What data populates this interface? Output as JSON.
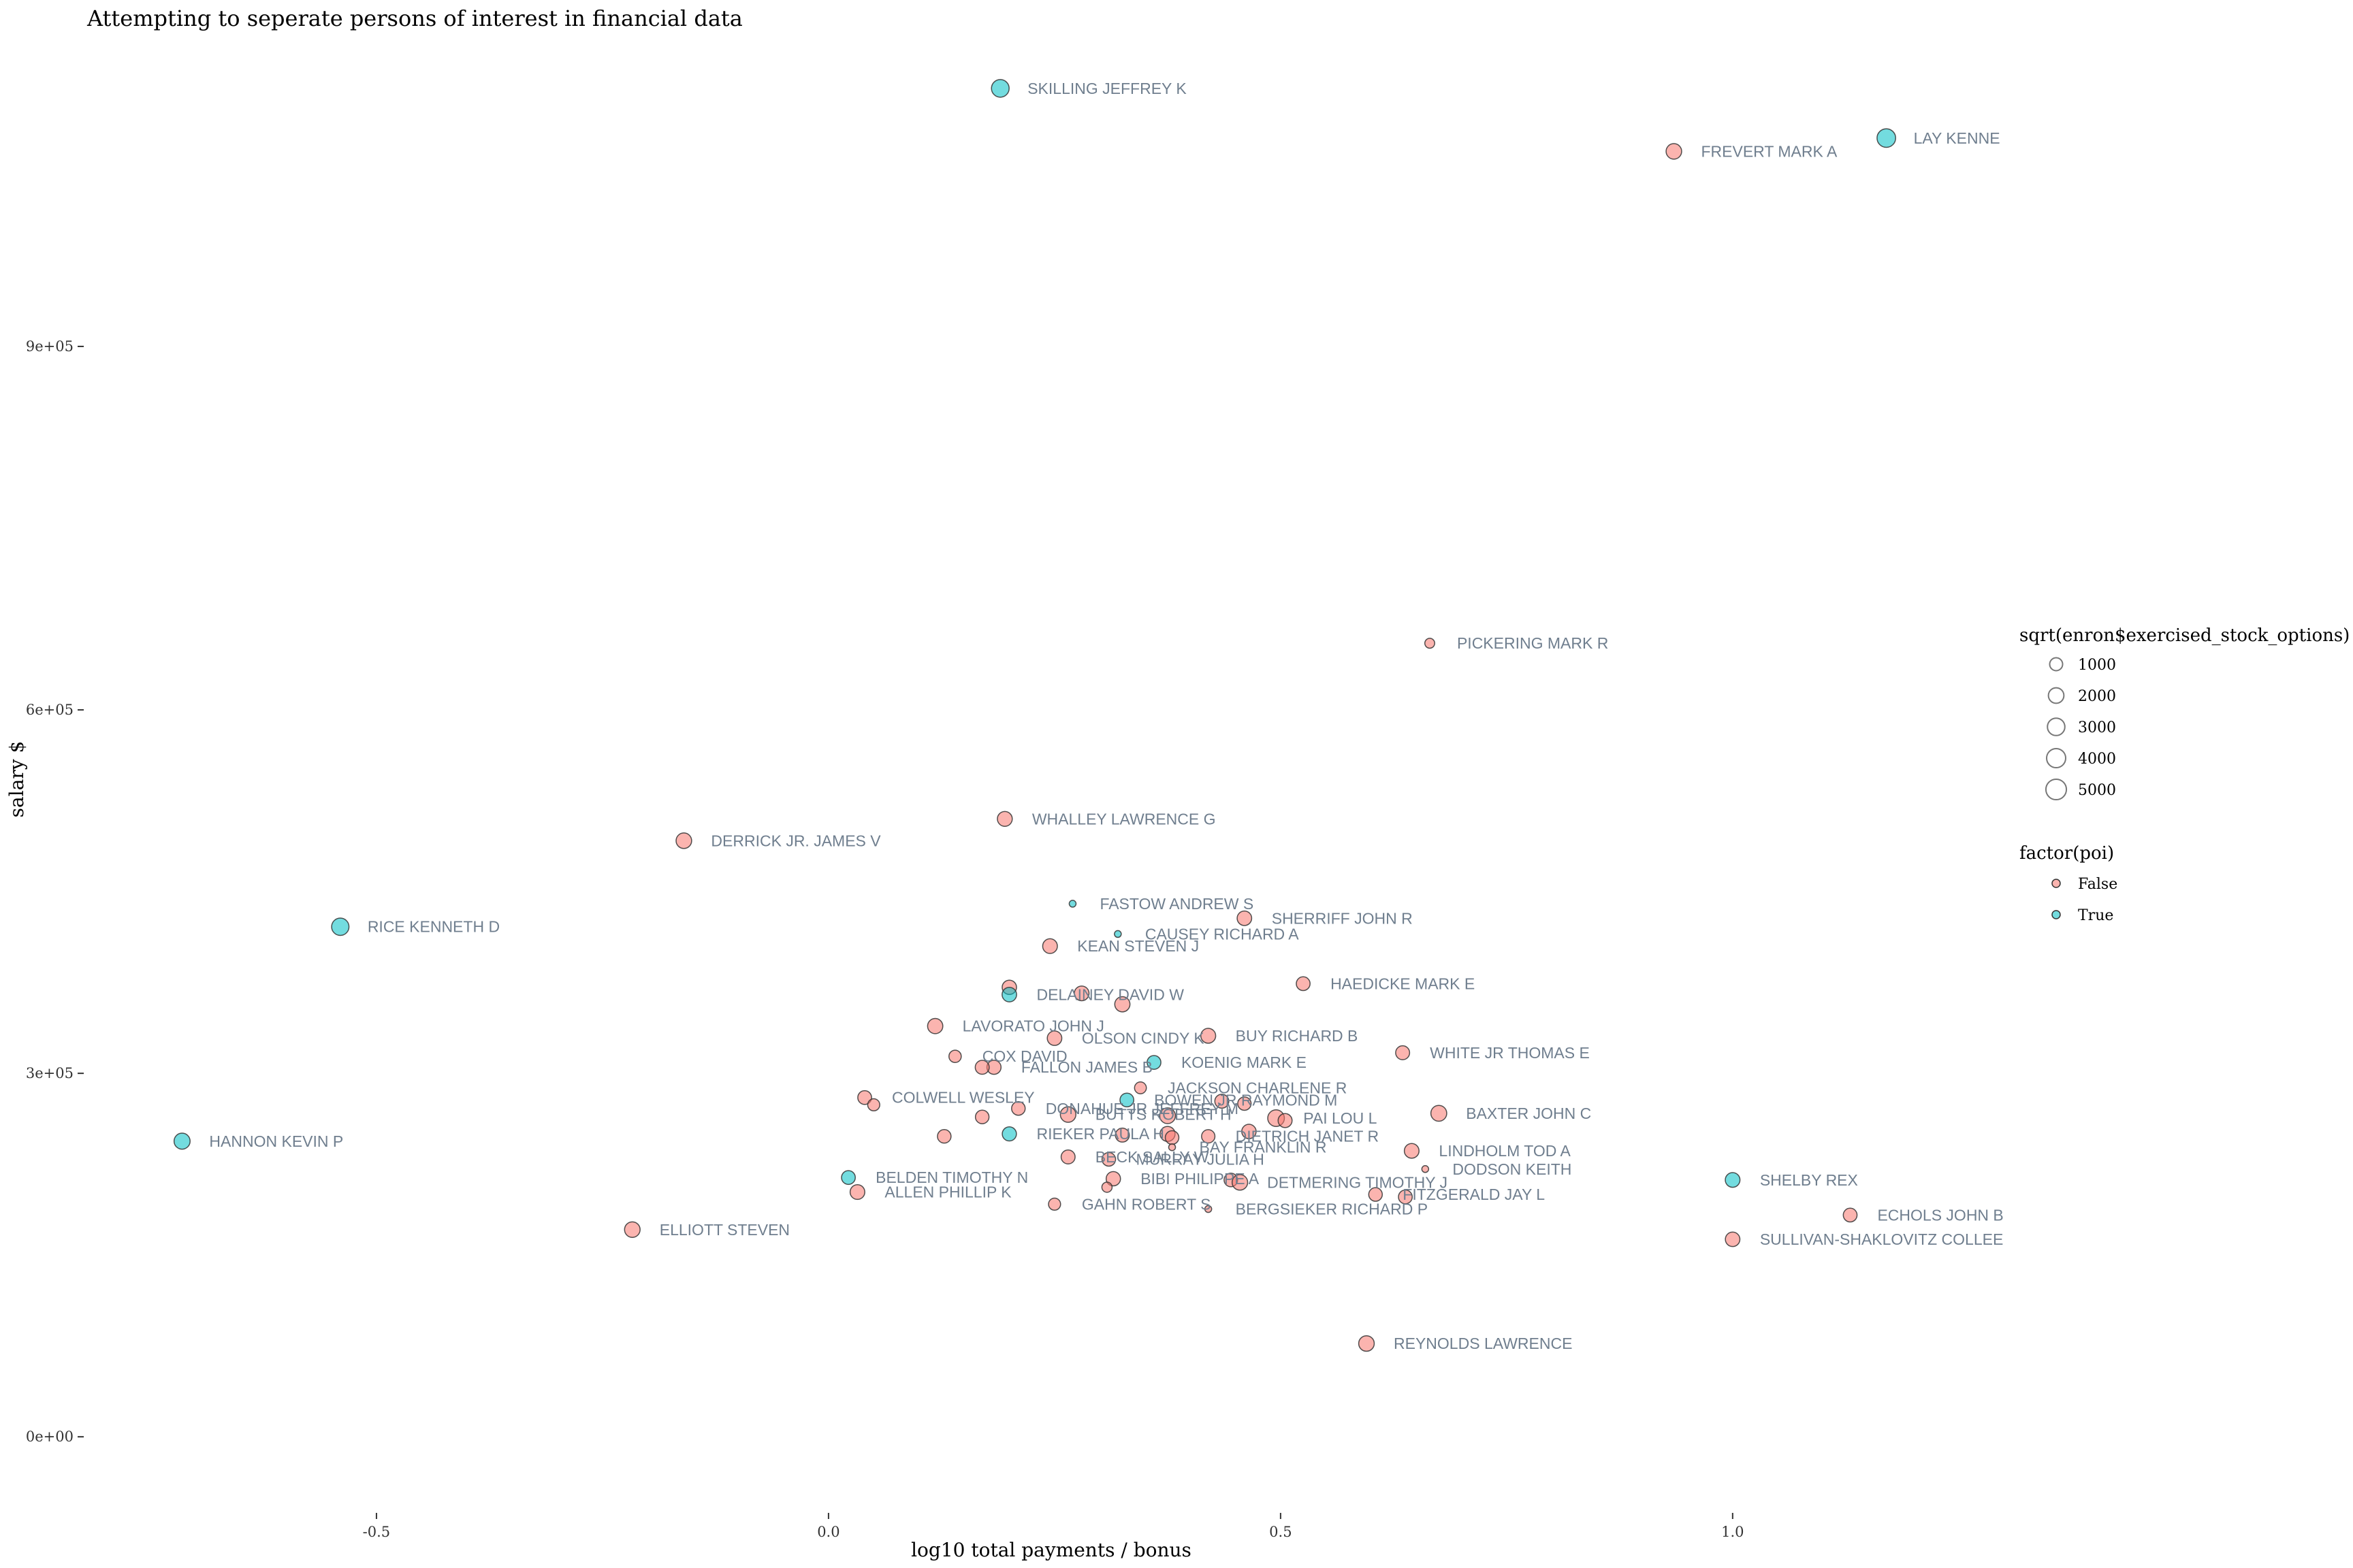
{
  "chart_data": {
    "type": "scatter",
    "title": "Attempting to seperate persons of interest in financial data",
    "xlabel": "log10 total payments / bonus",
    "ylabel": "salary $",
    "xlim": [
      -0.82,
      1.4
    ],
    "ylim": [
      -60000,
      1150000
    ],
    "x_ticks": [
      {
        "value": -0.5,
        "label": "-0.5"
      },
      {
        "value": 0.0,
        "label": "0.0"
      },
      {
        "value": 0.5,
        "label": "0.5"
      },
      {
        "value": 1.0,
        "label": "1.0"
      }
    ],
    "y_ticks": [
      {
        "value": 0,
        "label": "0e+00"
      },
      {
        "value": 300000,
        "label": "3e+05"
      },
      {
        "value": 600000,
        "label": "6e+05"
      },
      {
        "value": 900000,
        "label": "9e+05"
      }
    ],
    "grid": false,
    "size_legend": {
      "title": "sqrt(enron$exercised_stock_options)",
      "entries": [
        {
          "label": "1000",
          "value": 1000
        },
        {
          "label": "2000",
          "value": 2000
        },
        {
          "label": "3000",
          "value": 3000
        },
        {
          "label": "4000",
          "value": 4000
        },
        {
          "label": "5000",
          "value": 5000
        }
      ]
    },
    "color_legend": {
      "title": "factor(poi)",
      "entries": [
        {
          "label": "False",
          "color": "#F8766D"
        },
        {
          "label": "True",
          "color": "#00BFC4"
        }
      ]
    },
    "legend_placement": "right",
    "points": [
      {
        "label": "SKILLING JEFFREY K",
        "x": 0.19,
        "y": 1113000,
        "size": 4900,
        "poi": true
      },
      {
        "label": "LAY KENNE",
        "x": 1.17,
        "y": 1072000,
        "size": 5600,
        "poi": true
      },
      {
        "label": "FREVERT MARK A",
        "x": 0.935,
        "y": 1061000,
        "size": 3500,
        "poi": false
      },
      {
        "label": "PICKERING MARK R",
        "x": 0.665,
        "y": 655000,
        "size": 900,
        "poi": false
      },
      {
        "label": "WHALLEY LAWRENCE G",
        "x": 0.195,
        "y": 510000,
        "size": 3100,
        "poi": false
      },
      {
        "label": "DERRICK JR. JAMES V",
        "x": -0.16,
        "y": 492000,
        "size": 3500,
        "poi": false
      },
      {
        "label": "FASTOW ANDREW S",
        "x": 0.27,
        "y": 440000,
        "size": 200,
        "poi": true
      },
      {
        "label": "SHERRIFF JOHN R",
        "x": 0.46,
        "y": 428000,
        "size": 2900,
        "poi": false
      },
      {
        "label": "RICE KENNETH D",
        "x": -0.54,
        "y": 421000,
        "size": 4700,
        "poi": true
      },
      {
        "label": "CAUSEY RICHARD A",
        "x": 0.32,
        "y": 415000,
        "size": 200,
        "poi": true
      },
      {
        "label": "KEAN STEVEN J",
        "x": 0.245,
        "y": 405000,
        "size": 3000,
        "poi": false
      },
      {
        "label": "HAEDICKE MARK E",
        "x": 0.525,
        "y": 374000,
        "size": 2500,
        "poi": false
      },
      {
        "label": "",
        "x": 0.2,
        "y": 371000,
        "size": 2800,
        "poi": false
      },
      {
        "label": "DELAINEY DAVID W",
        "x": 0.2,
        "y": 365000,
        "size": 2900,
        "poi": true
      },
      {
        "label": "",
        "x": 0.28,
        "y": 366000,
        "size": 3000,
        "poi": false
      },
      {
        "label": "",
        "x": 0.325,
        "y": 357000,
        "size": 3300,
        "poi": false
      },
      {
        "label": "LAVORATO JOHN J",
        "x": 0.118,
        "y": 339000,
        "size": 3300,
        "poi": false
      },
      {
        "label": "BUY RICHARD B",
        "x": 0.42,
        "y": 331000,
        "size": 3100,
        "poi": false
      },
      {
        "label": "OLSON CINDY K",
        "x": 0.25,
        "y": 329000,
        "size": 2900,
        "poi": false
      },
      {
        "label": "WHITE JR THOMAS E",
        "x": 0.635,
        "y": 317000,
        "size": 2600,
        "poi": false
      },
      {
        "label": "COX DAVID",
        "x": 0.14,
        "y": 314000,
        "size": 1800,
        "poi": false
      },
      {
        "label": "KOENIG MARK E",
        "x": 0.36,
        "y": 309000,
        "size": 2500,
        "poi": true
      },
      {
        "label": "FALLON JAMES B",
        "x": 0.183,
        "y": 305000,
        "size": 2700,
        "poi": false
      },
      {
        "label": "",
        "x": 0.17,
        "y": 305000,
        "size": 2600,
        "poi": false
      },
      {
        "label": "JACKSON CHARLENE R",
        "x": 0.345,
        "y": 288000,
        "size": 1600,
        "poi": false
      },
      {
        "label": "COLWELL WESLEY",
        "x": 0.04,
        "y": 280000,
        "size": 2500,
        "poi": false
      },
      {
        "label": "",
        "x": 0.05,
        "y": 274000,
        "size": 1700,
        "poi": false
      },
      {
        "label": "DONAHUE JR JEFFREY M",
        "x": 0.21,
        "y": 271000,
        "size": 2400,
        "poi": false
      },
      {
        "label": "BOWEN JR RAYMOND M",
        "x": 0.33,
        "y": 278000,
        "size": 2500,
        "poi": true
      },
      {
        "label": "",
        "x": 0.435,
        "y": 277000,
        "size": 2600,
        "poi": false
      },
      {
        "label": "",
        "x": 0.46,
        "y": 275000,
        "size": 2300,
        "poi": false
      },
      {
        "label": "BAXTER JOHN C",
        "x": 0.675,
        "y": 267000,
        "size": 3700,
        "poi": false
      },
      {
        "label": "",
        "x": 0.17,
        "y": 264000,
        "size": 2400,
        "poi": false
      },
      {
        "label": "BUTTS ROBERT H",
        "x": 0.265,
        "y": 266000,
        "size": 3500,
        "poi": false
      },
      {
        "label": "",
        "x": 0.375,
        "y": 265000,
        "size": 3600,
        "poi": false
      },
      {
        "label": "PAI LOU L",
        "x": 0.495,
        "y": 263000,
        "size": 4200,
        "poi": false
      },
      {
        "label": "",
        "x": 0.505,
        "y": 261000,
        "size": 2600,
        "poi": false
      },
      {
        "label": "RIEKER PAULA H",
        "x": 0.2,
        "y": 250000,
        "size": 2700,
        "poi": true
      },
      {
        "label": "",
        "x": 0.128,
        "y": 248000,
        "size": 2400,
        "poi": false
      },
      {
        "label": "",
        "x": 0.325,
        "y": 249000,
        "size": 2600,
        "poi": false
      },
      {
        "label": "",
        "x": 0.375,
        "y": 250000,
        "size": 3200,
        "poi": false
      },
      {
        "label": "",
        "x": 0.38,
        "y": 247000,
        "size": 2400,
        "poi": false
      },
      {
        "label": "DIETRICH JANET R",
        "x": 0.42,
        "y": 248000,
        "size": 2300,
        "poi": false
      },
      {
        "label": "",
        "x": 0.465,
        "y": 252000,
        "size": 2800,
        "poi": false
      },
      {
        "label": "BAY FRANKLIN R",
        "x": 0.38,
        "y": 239000,
        "size": 200,
        "poi": false
      },
      {
        "label": "HANNON KEVIN P",
        "x": -0.715,
        "y": 244000,
        "size": 3800,
        "poi": true
      },
      {
        "label": "LINDHOLM TOD A",
        "x": 0.645,
        "y": 236000,
        "size": 3000,
        "poi": false
      },
      {
        "label": "BECK SALLY W",
        "x": 0.265,
        "y": 231000,
        "size": 2600,
        "poi": false
      },
      {
        "label": "MURRAY JULIA H",
        "x": 0.31,
        "y": 229000,
        "size": 2400,
        "poi": false
      },
      {
        "label": "DODSON KEITH",
        "x": 0.66,
        "y": 221000,
        "size": 200,
        "poi": false
      },
      {
        "label": "BELDEN TIMOTHY N",
        "x": 0.022,
        "y": 214000,
        "size": 2500,
        "poi": true
      },
      {
        "label": "BIBI PHILIPPE A",
        "x": 0.315,
        "y": 213000,
        "size": 2800,
        "poi": false
      },
      {
        "label": "",
        "x": 0.445,
        "y": 212000,
        "size": 2400,
        "poi": false
      },
      {
        "label": "DETMERING TIMOTHY J",
        "x": 0.455,
        "y": 210000,
        "size": 3500,
        "poi": false
      },
      {
        "label": "SHELBY REX",
        "x": 1.0,
        "y": 212000,
        "size": 3000,
        "poi": true
      },
      {
        "label": "",
        "x": 0.308,
        "y": 206000,
        "size": 1000,
        "poi": false
      },
      {
        "label": "ALLEN PHILLIP K",
        "x": 0.032,
        "y": 202000,
        "size": 3000,
        "poi": false
      },
      {
        "label": "FITZGERALD JAY L",
        "x": 0.605,
        "y": 200000,
        "size": 2400,
        "poi": false
      },
      {
        "label": "",
        "x": 0.638,
        "y": 198000,
        "size": 2500,
        "poi": false
      },
      {
        "label": "GAHN ROBERT S",
        "x": 0.25,
        "y": 192000,
        "size": 1700,
        "poi": false
      },
      {
        "label": "BERGSIEKER RICHARD P",
        "x": 0.42,
        "y": 188000,
        "size": 200,
        "poi": false
      },
      {
        "label": "ECHOLS JOHN B",
        "x": 1.13,
        "y": 183000,
        "size": 2500,
        "poi": false
      },
      {
        "label": "ELLIOTT STEVEN",
        "x": -0.217,
        "y": 171000,
        "size": 3500,
        "poi": false
      },
      {
        "label": "SULLIVAN-SHAKLOVITZ COLLEE",
        "x": 1.0,
        "y": 163000,
        "size": 2900,
        "poi": false
      },
      {
        "label": "REYNOLDS LAWRENCE",
        "x": 0.595,
        "y": 77000,
        "size": 3500,
        "poi": false
      }
    ]
  }
}
